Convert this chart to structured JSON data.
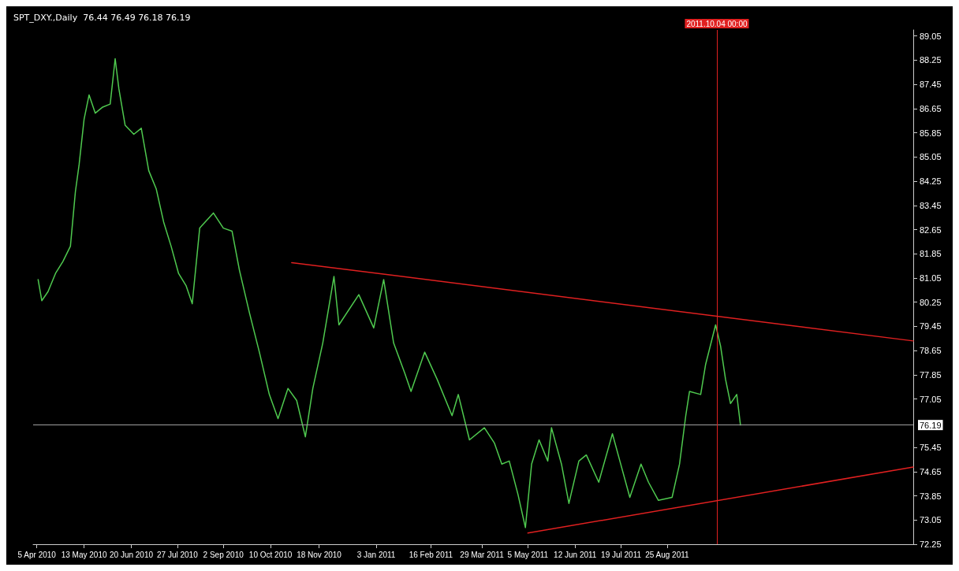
{
  "chart_data": {
    "type": "line",
    "title": "SPT_DXY.,Daily  76.44 76.49 76.18 76.19",
    "xlim": [
      "2010-04-02",
      "2012-03-10"
    ],
    "xticks": [
      {
        "value": "2010-04-05",
        "label": "5 Apr 2010"
      },
      {
        "value": "2010-05-13",
        "label": "13 May 2010"
      },
      {
        "value": "2010-06-20",
        "label": "20 Jun 2010"
      },
      {
        "value": "2010-07-27",
        "label": "27 Jul 2010"
      },
      {
        "value": "2010-09-02",
        "label": "2 Sep 2010"
      },
      {
        "value": "2010-10-10",
        "label": "10 Oct 2010"
      },
      {
        "value": "2010-11-18",
        "label": "18 Nov 2010"
      },
      {
        "value": "2011-01-03",
        "label": "3 Jan 2011"
      },
      {
        "value": "2011-02-16",
        "label": "16 Feb 2011"
      },
      {
        "value": "2011-03-29",
        "label": "29 Mar 2011"
      },
      {
        "value": "2011-05-05",
        "label": "5 May 2011"
      },
      {
        "value": "2011-06-12",
        "label": "12 Jun 2011"
      },
      {
        "value": "2011-07-19",
        "label": "19 Jul 2011"
      },
      {
        "value": "2011-08-25",
        "label": "25 Aug 2011"
      }
    ],
    "ylim": [
      72.25,
      89.25
    ],
    "yticks": [
      72.25,
      73.05,
      73.85,
      74.65,
      75.45,
      77.05,
      77.85,
      78.65,
      79.45,
      80.25,
      81.05,
      81.85,
      82.65,
      83.45,
      84.25,
      85.05,
      85.85,
      86.65,
      87.45,
      88.25,
      89.05
    ],
    "grid": false,
    "marker": "none",
    "line_style": "solid",
    "series": [
      {
        "color": "#4fc94f",
        "x": [
          "2010-04-06",
          "2010-04-09",
          "2010-04-14",
          "2010-04-20",
          "2010-04-26",
          "2010-05-02",
          "2010-05-06",
          "2010-05-09",
          "2010-05-13",
          "2010-05-17",
          "2010-05-22",
          "2010-05-28",
          "2010-06-03",
          "2010-06-07",
          "2010-06-10",
          "2010-06-15",
          "2010-06-22",
          "2010-06-28",
          "2010-07-04",
          "2010-07-10",
          "2010-07-16",
          "2010-07-22",
          "2010-07-28",
          "2010-08-03",
          "2010-08-08",
          "2010-08-14",
          "2010-08-25",
          "2010-09-02",
          "2010-09-09",
          "2010-09-15",
          "2010-09-23",
          "2010-10-01",
          "2010-10-09",
          "2010-10-16",
          "2010-10-24",
          "2010-10-31",
          "2010-11-07",
          "2010-11-13",
          "2010-11-21",
          "2010-11-30",
          "2010-12-04",
          "2010-12-20",
          "2011-01-01",
          "2011-01-09",
          "2011-01-17",
          "2011-01-26",
          "2011-01-31",
          "2011-02-11",
          "2011-02-21",
          "2011-03-05",
          "2011-03-10",
          "2011-03-19",
          "2011-03-31",
          "2011-04-08",
          "2011-04-14",
          "2011-04-20",
          "2011-04-27",
          "2011-05-03",
          "2011-05-08",
          "2011-05-14",
          "2011-05-21",
          "2011-05-24",
          "2011-06-01",
          "2011-06-07",
          "2011-06-15",
          "2011-06-21",
          "2011-07-01",
          "2011-07-12",
          "2011-07-18",
          "2011-07-26",
          "2011-08-04",
          "2011-08-10",
          "2011-08-18",
          "2011-08-29",
          "2011-09-04",
          "2011-09-09",
          "2011-09-12",
          "2011-09-21",
          "2011-09-25",
          "2011-10-03",
          "2011-10-07",
          "2011-10-11",
          "2011-10-15",
          "2011-10-20",
          "2011-10-23"
        ],
        "values": [
          81.0,
          80.3,
          80.6,
          81.2,
          81.6,
          82.1,
          83.9,
          84.8,
          86.3,
          87.1,
          86.5,
          86.7,
          86.8,
          88.3,
          87.3,
          86.1,
          85.8,
          86.0,
          84.6,
          84.0,
          82.9,
          82.1,
          81.2,
          80.8,
          80.2,
          82.7,
          83.2,
          82.7,
          82.6,
          81.3,
          79.9,
          78.6,
          77.2,
          76.4,
          77.4,
          77.0,
          75.8,
          77.4,
          78.9,
          81.1,
          79.5,
          80.5,
          79.4,
          81.0,
          78.9,
          77.9,
          77.3,
          78.6,
          77.7,
          76.5,
          77.2,
          75.7,
          76.1,
          75.6,
          74.9,
          75.0,
          73.9,
          72.8,
          74.9,
          75.7,
          75.0,
          76.1,
          74.9,
          73.6,
          75.0,
          75.2,
          74.3,
          75.9,
          75.0,
          73.8,
          74.9,
          74.3,
          73.7,
          73.8,
          74.9,
          76.5,
          77.3,
          77.2,
          78.2,
          79.5,
          78.8,
          77.7,
          76.9,
          77.2,
          76.19
        ]
      },
      {
        "color": "#e02020",
        "x": [
          "2010-10-27",
          "2012-03-10"
        ],
        "values": [
          81.56,
          78.97
        ]
      },
      {
        "color": "#e02020",
        "x": [
          "2011-05-05",
          "2012-03-10"
        ],
        "values": [
          72.62,
          74.8
        ]
      }
    ],
    "ref_lines": [
      {
        "axis": "y",
        "value": 76.19,
        "label": "76.19",
        "color": "#a0a0a0"
      },
      {
        "axis": "x",
        "value": "2011-10-04",
        "label": "2011.10.04 00:00",
        "color": "#e02020"
      }
    ]
  }
}
